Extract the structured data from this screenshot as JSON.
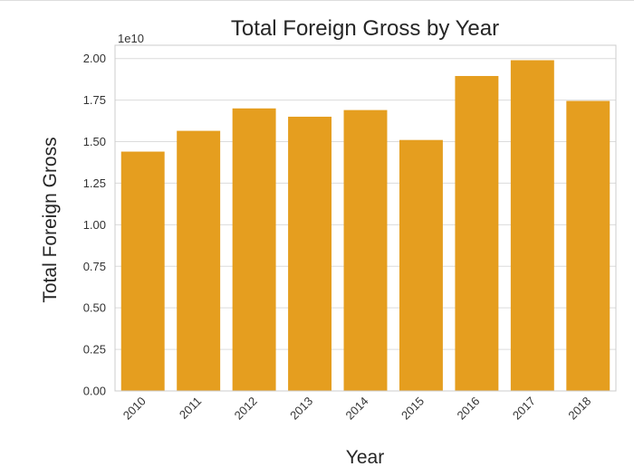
{
  "chart_data": {
    "type": "bar",
    "title": "Total Foreign Gross by Year",
    "xlabel": "Year",
    "ylabel": "Total Foreign Gross",
    "y_offset_label": "1e10",
    "categories": [
      "2010",
      "2011",
      "2012",
      "2013",
      "2014",
      "2015",
      "2016",
      "2017",
      "2018"
    ],
    "values": [
      1.44,
      1.565,
      1.7,
      1.65,
      1.69,
      1.51,
      1.895,
      1.99,
      1.745
    ],
    "value_multiplier": 10000000000,
    "ylim": [
      0,
      2.08
    ],
    "yticks": [
      "0.00",
      "0.25",
      "0.50",
      "0.75",
      "1.00",
      "1.25",
      "1.50",
      "1.75",
      "2.00"
    ],
    "ytick_values": [
      0,
      0.25,
      0.5,
      0.75,
      1.0,
      1.25,
      1.5,
      1.75,
      2.0
    ],
    "bar_color": "#e59e1f",
    "grid": "horizontal",
    "xtick_rotation": 45
  }
}
